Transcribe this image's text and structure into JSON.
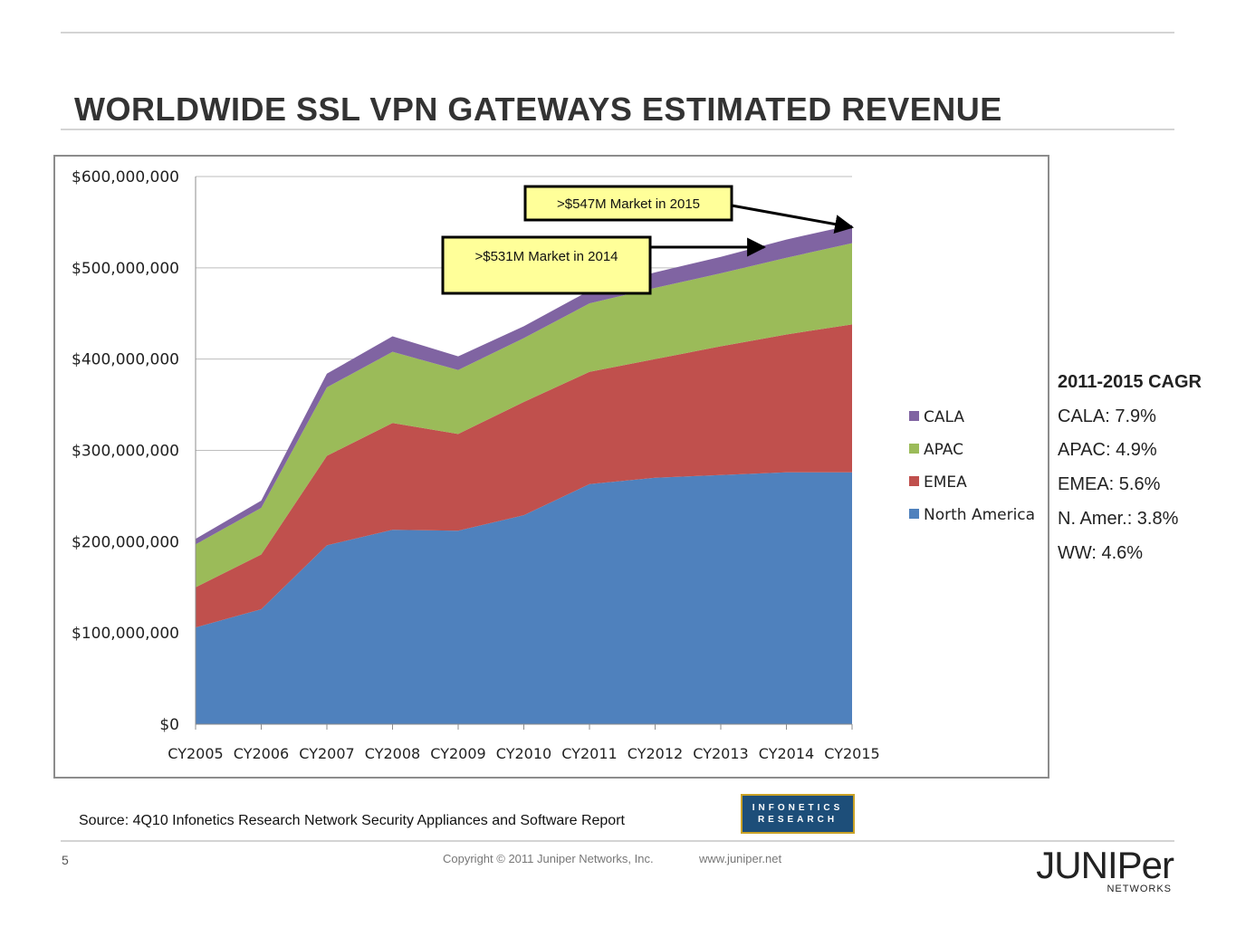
{
  "slide": {
    "title": "WORLDWIDE SSL VPN GATEWAYS ESTIMATED REVENUE",
    "source": "Source: 4Q10 Infonetics Research Network Security Appliances and Software Report",
    "page_number": "5",
    "copyright": "Copyright © 2011 Juniper Networks, Inc.",
    "url": "www.juniper.net",
    "logo_infonetics": [
      "INFONETICS",
      "RESEARCH"
    ],
    "logo_juniper": "JUNIPer",
    "logo_juniper_sub": "NETWORKS"
  },
  "cagr": {
    "title": "2011-2015 CAGR",
    "items": [
      "CALA: 7.9%",
      "APAC: 4.9%",
      "EMEA: 5.6%",
      "N. Amer.: 3.8%",
      "WW: 4.6%"
    ]
  },
  "chart_data": {
    "type": "area",
    "stacked": true,
    "categories": [
      "CY2005",
      "CY2006",
      "CY2007",
      "CY2008",
      "CY2009",
      "CY2010",
      "CY2011",
      "CY2012",
      "CY2013",
      "CY2014",
      "CY2015"
    ],
    "series": [
      {
        "name": "North America",
        "color": "#4f81bd",
        "values": [
          106000000,
          126000000,
          196000000,
          213000000,
          212000000,
          229000000,
          263000000,
          270000000,
          273000000,
          276000000,
          276000000
        ]
      },
      {
        "name": "EMEA",
        "color": "#c0504d",
        "values": [
          44000000,
          60000000,
          98000000,
          117000000,
          106000000,
          124000000,
          123000000,
          130000000,
          141000000,
          151000000,
          162000000
        ]
      },
      {
        "name": "APAC",
        "color": "#9bbb59",
        "values": [
          47000000,
          51000000,
          75000000,
          78000000,
          70000000,
          70000000,
          75000000,
          78000000,
          80000000,
          84000000,
          89000000
        ]
      },
      {
        "name": "CALA",
        "color": "#8064a2",
        "values": [
          6000000,
          8000000,
          15000000,
          17000000,
          15000000,
          13000000,
          14000000,
          17000000,
          18000000,
          20000000,
          20000000
        ]
      }
    ],
    "y_ticks": [
      "$0",
      "$100,000,000",
      "$200,000,000",
      "$300,000,000",
      "$400,000,000",
      "$500,000,000",
      "$600,000,000"
    ],
    "ylim": [
      0,
      600000000
    ],
    "grid": true,
    "legend_position": "right",
    "legend_order": [
      "CALA",
      "APAC",
      "EMEA",
      "North America"
    ],
    "annotations": [
      {
        "text": ">$547M Market in 2015",
        "category": "CY2015"
      },
      {
        "text": ">$531M Market in 2014",
        "category": "CY2014"
      }
    ]
  }
}
